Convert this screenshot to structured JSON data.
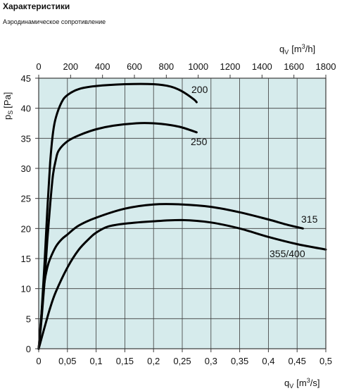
{
  "page": {
    "heading": "Характеристики",
    "subheading": "Аэродинамическое сопротивление"
  },
  "colors": {
    "plot_background": "#d6ebec",
    "grid": "#3a3a3a",
    "curve": "#000000"
  },
  "chart_data": {
    "type": "line",
    "title": "",
    "xlabel_bottom": {
      "base": "q",
      "sub": "V",
      "unit_pre": "[m",
      "sup": "3",
      "unit_post": "/s]"
    },
    "xlabel_top": {
      "base": "q",
      "sub": "V",
      "unit_pre": "[m",
      "sup": "3",
      "unit_post": "/h]"
    },
    "ylabel": {
      "base": "p",
      "sub": "S",
      "unit": "[Pa]"
    },
    "xlim": [
      0,
      0.5
    ],
    "ylim": [
      0,
      45
    ],
    "x_ticks": [
      "0",
      "0,05",
      "0,1",
      "0,15",
      "0,2",
      "0,25",
      "0,3",
      "0,35",
      "0,4",
      "0,45",
      "0,5"
    ],
    "x_top_ticks": [
      "0",
      "200",
      "400",
      "600",
      "800",
      "1000",
      "1200",
      "1400",
      "1600",
      "1800"
    ],
    "y_ticks": [
      "0",
      "5",
      "10",
      "15",
      "20",
      "25",
      "30",
      "35",
      "40",
      "45"
    ],
    "grid": true,
    "series": [
      {
        "name": "200",
        "x": [
          0.0,
          0.005,
          0.01,
          0.015,
          0.02,
          0.025,
          0.03,
          0.04,
          0.05,
          0.07,
          0.1,
          0.15,
          0.2,
          0.23,
          0.25,
          0.27,
          0.275
        ],
        "y": [
          0,
          6,
          14,
          23,
          31,
          36,
          38.5,
          41,
          42.2,
          43.2,
          43.7,
          44.0,
          44.0,
          43.6,
          42.8,
          41.5,
          41.0
        ]
      },
      {
        "name": "250",
        "x": [
          0.0,
          0.005,
          0.01,
          0.015,
          0.02,
          0.025,
          0.03,
          0.035,
          0.05,
          0.07,
          0.1,
          0.13,
          0.17,
          0.2,
          0.23,
          0.25,
          0.275
        ],
        "y": [
          0,
          5,
          11,
          18,
          24,
          29,
          31.5,
          33,
          34.5,
          35.5,
          36.5,
          37.1,
          37.5,
          37.5,
          37.2,
          36.8,
          36.0
        ]
      },
      {
        "name": "315",
        "x": [
          0.0,
          0.005,
          0.01,
          0.015,
          0.02,
          0.03,
          0.04,
          0.05,
          0.07,
          0.1,
          0.15,
          0.2,
          0.25,
          0.3,
          0.35,
          0.4,
          0.43,
          0.46
        ],
        "y": [
          0,
          6,
          11,
          13.5,
          15,
          17,
          18.2,
          19,
          20.5,
          21.8,
          23.3,
          24.0,
          24.0,
          23.6,
          22.7,
          21.5,
          20.7,
          20.0
        ]
      },
      {
        "name": "355/400",
        "x": [
          0.0,
          0.01,
          0.02,
          0.03,
          0.05,
          0.07,
          0.09,
          0.1,
          0.12,
          0.15,
          0.2,
          0.25,
          0.3,
          0.35,
          0.4,
          0.45,
          0.5
        ],
        "y": [
          0,
          3.5,
          6.8,
          9.5,
          13.5,
          16.5,
          18.5,
          19.3,
          20.3,
          20.8,
          21.2,
          21.4,
          21.0,
          20.0,
          18.6,
          17.4,
          16.5
        ]
      }
    ]
  }
}
